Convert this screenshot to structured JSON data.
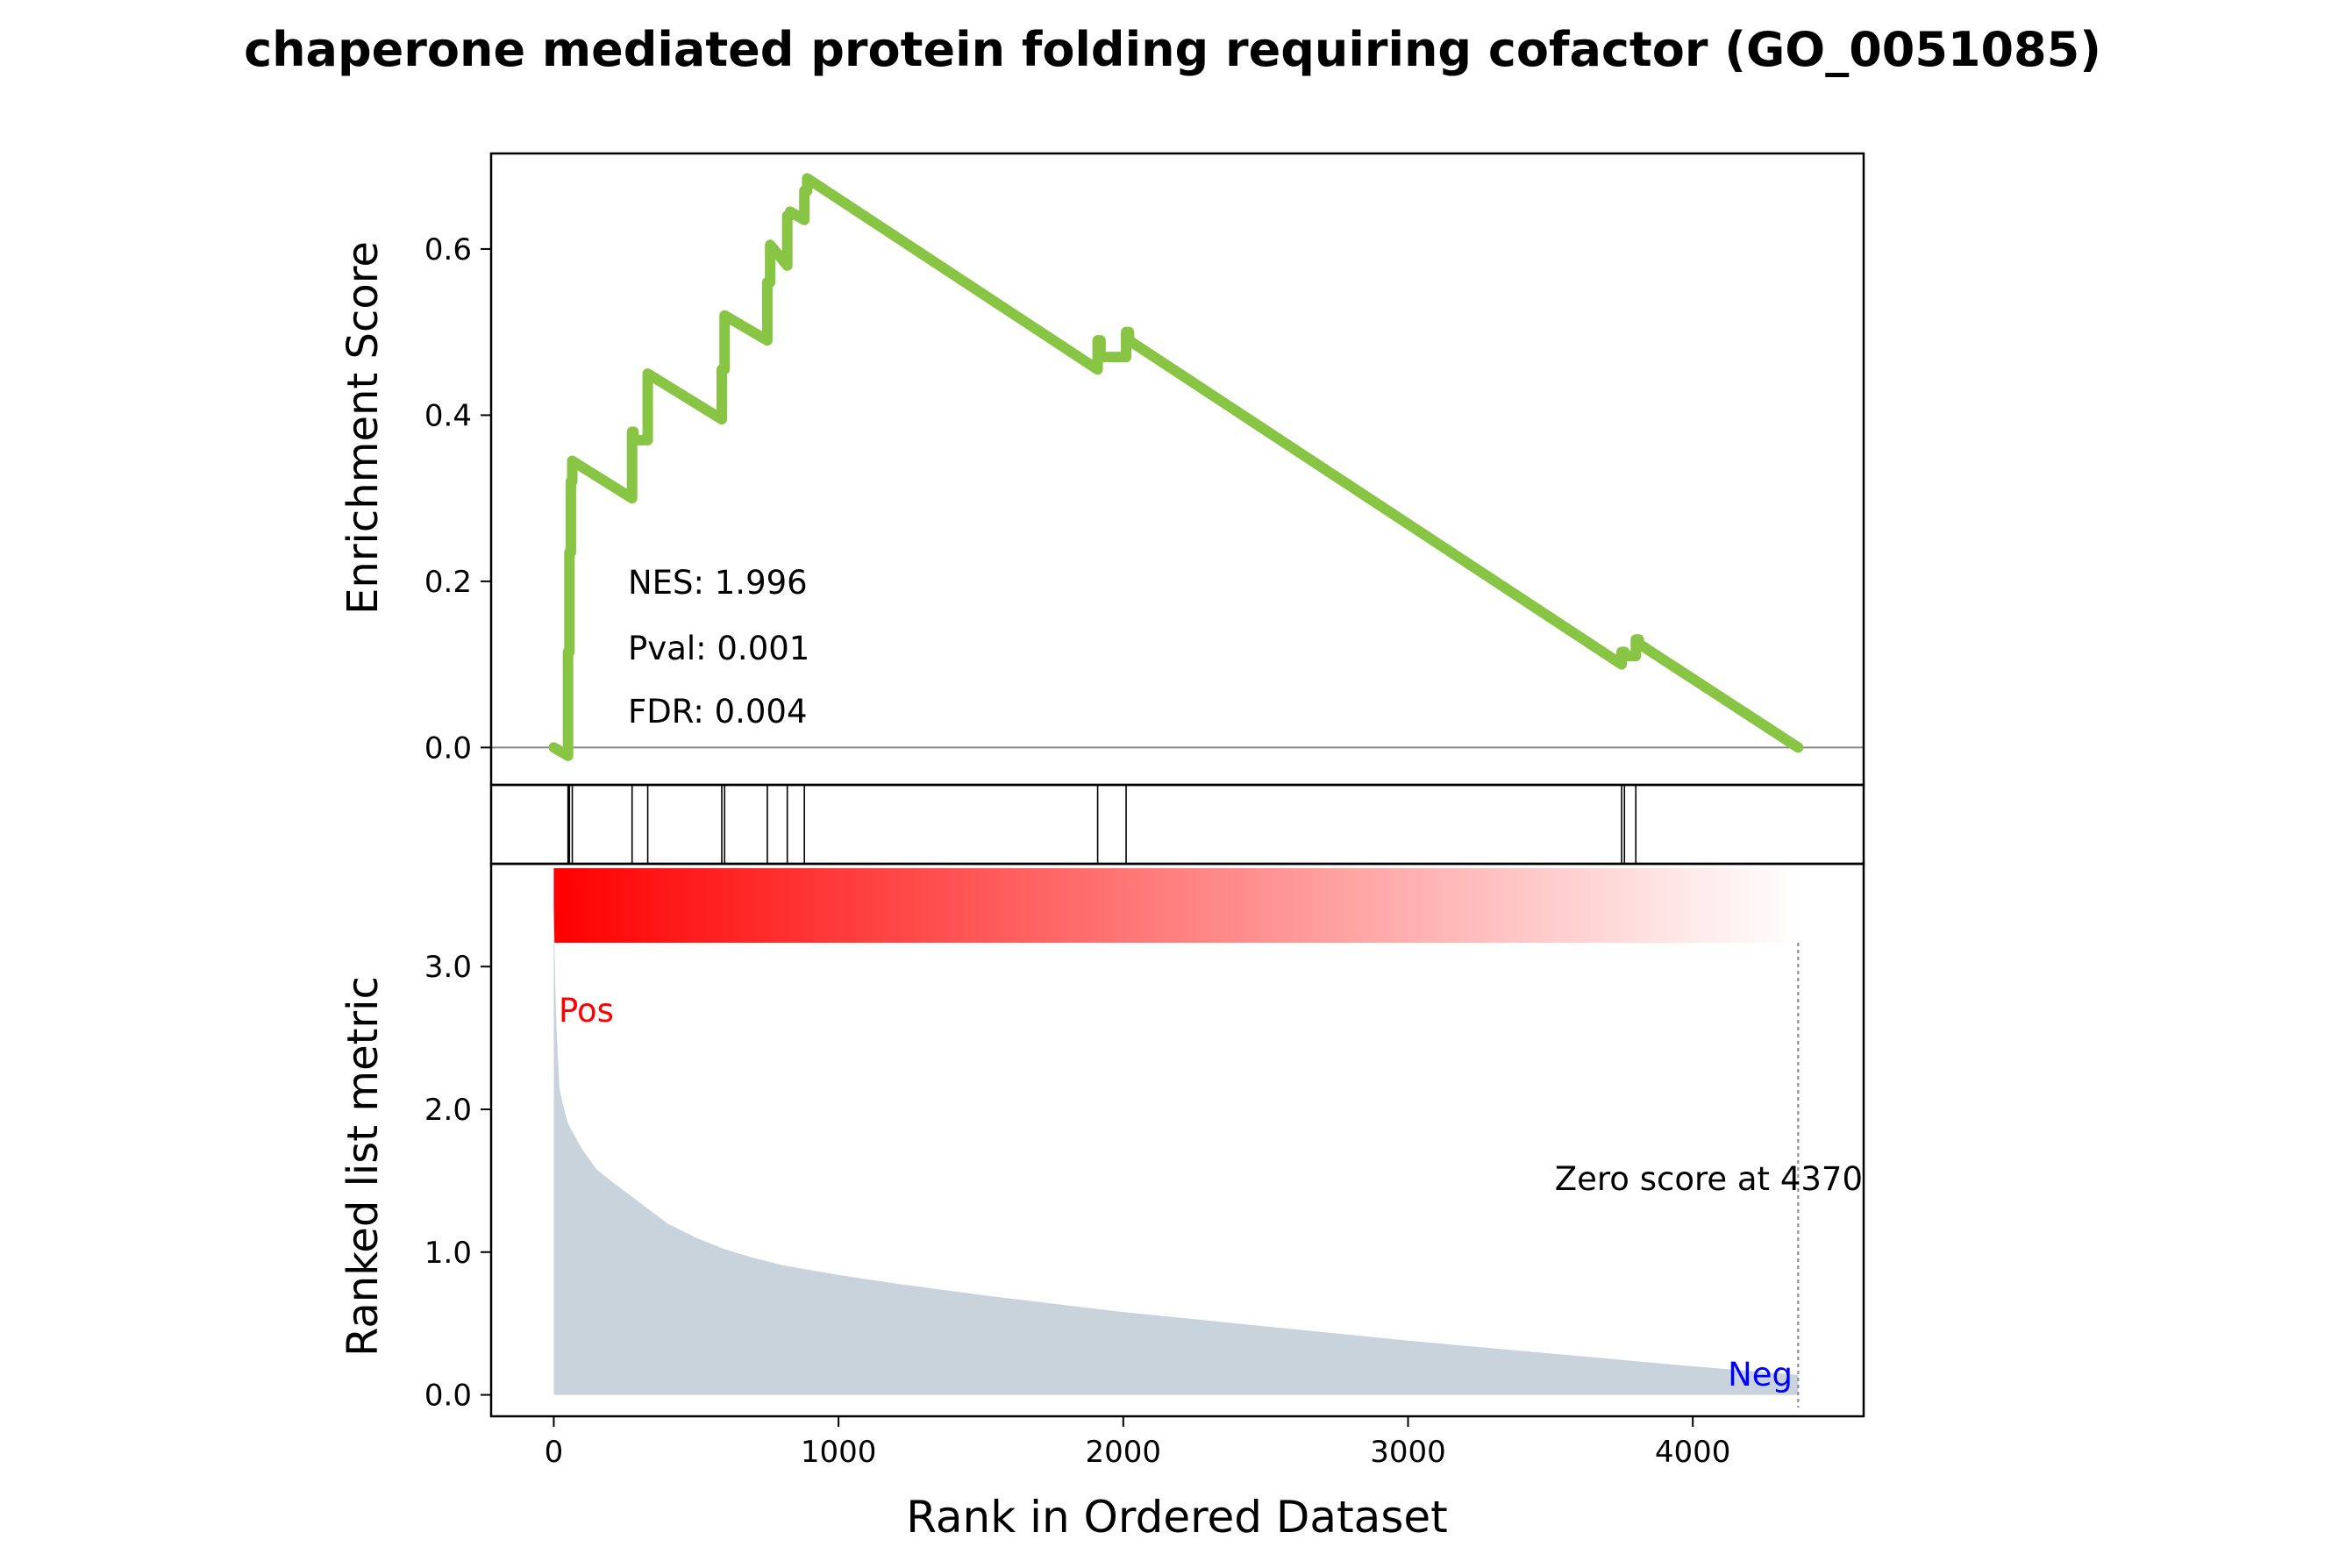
{
  "chart_data": {
    "type": "line",
    "title": "chaperone mediated protein folding requiring cofactor (GO_0051085)",
    "xlabel": "Rank in Ordered Dataset",
    "es_panel": {
      "ylabel": "Enrichment Score",
      "ylim": [
        -0.045,
        0.715
      ],
      "yticks": [
        0.0,
        0.2,
        0.4,
        0.6
      ],
      "ytick_labels": [
        "0.0",
        "0.2",
        "0.4",
        "0.6"
      ],
      "stats": [
        "NES: 1.996",
        "Pval: 0.001",
        "FDR: 0.004"
      ],
      "line_color": "#88c544",
      "zero_line_color": "#888888",
      "x": [
        0,
        50,
        50,
        55,
        55,
        60,
        60,
        65,
        65,
        275,
        275,
        280,
        280,
        330,
        330,
        590,
        590,
        600,
        600,
        750,
        750,
        760,
        760,
        820,
        820,
        830,
        830,
        880,
        880,
        890,
        890,
        1910,
        1910,
        1920,
        1920,
        2010,
        2010,
        2020,
        2020,
        3750,
        3750,
        3760,
        3760,
        3800,
        3800,
        3810,
        3810,
        4370
      ],
      "y": [
        0.0,
        -0.01,
        0.115,
        0.115,
        0.235,
        0.235,
        0.32,
        0.32,
        0.345,
        0.3,
        0.38,
        0.38,
        0.37,
        0.37,
        0.45,
        0.395,
        0.455,
        0.455,
        0.52,
        0.49,
        0.56,
        0.56,
        0.605,
        0.58,
        0.64,
        0.64,
        0.645,
        0.635,
        0.67,
        0.67,
        0.685,
        0.455,
        0.49,
        0.49,
        0.47,
        0.47,
        0.5,
        0.5,
        0.49,
        0.1,
        0.115,
        0.115,
        0.11,
        0.11,
        0.13,
        0.13,
        0.125,
        0.0
      ]
    },
    "hits_panel": {
      "hit_ranks": [
        50,
        55,
        65,
        275,
        330,
        590,
        600,
        750,
        820,
        880,
        1910,
        2010,
        3750,
        3760,
        3800
      ]
    },
    "heat_bar": {
      "colors": [
        "#ff0000",
        "#ffffff"
      ]
    },
    "rank_panel": {
      "ylabel": "Ranked list metric",
      "ylim": [
        -0.15,
        3.72
      ],
      "yticks": [
        0.0,
        1.0,
        2.0,
        3.0
      ],
      "ytick_labels": [
        "0.0",
        "1.0",
        "2.0",
        "3.0"
      ],
      "fill_color": "#c8d3dc",
      "pos_label": "Pos",
      "neg_label": "Neg",
      "pos_color": "#ff0000",
      "neg_color": "#0000ff",
      "zero_score_label": "Zero score at 4370",
      "zero_score_rank": 4370,
      "x": [
        0,
        5,
        10,
        20,
        30,
        50,
        100,
        150,
        200,
        300,
        400,
        500,
        600,
        700,
        800,
        1000,
        1200,
        1500,
        2000,
        2500,
        3000,
        3500,
        4000,
        4370
      ],
      "y": [
        3.45,
        2.9,
        2.55,
        2.15,
        2.05,
        1.9,
        1.72,
        1.58,
        1.5,
        1.35,
        1.2,
        1.1,
        1.02,
        0.96,
        0.91,
        0.84,
        0.78,
        0.7,
        0.58,
        0.48,
        0.38,
        0.29,
        0.2,
        0.14
      ]
    },
    "xlim": [
      -220,
      4600
    ],
    "xticks": [
      0,
      1000,
      2000,
      3000,
      4000
    ],
    "xtick_labels": [
      "0",
      "1000",
      "2000",
      "3000",
      "4000"
    ]
  }
}
